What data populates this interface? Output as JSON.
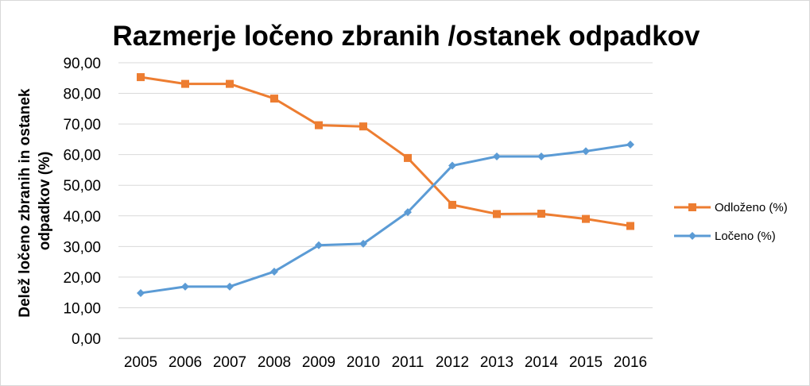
{
  "chart_data": {
    "type": "line",
    "title": "Razmerje ločeno zbranih /ostanek odpadkov",
    "xlabel": "",
    "ylabel_lines": [
      "Delež ločeno zbranih in ostanek",
      "odpadkov (%)"
    ],
    "categories": [
      "2005",
      "2006",
      "2007",
      "2008",
      "2009",
      "2010",
      "2011",
      "2012",
      "2013",
      "2014",
      "2015",
      "2016"
    ],
    "y_ticks": [
      "0,00",
      "10,00",
      "20,00",
      "30,00",
      "40,00",
      "50,00",
      "60,00",
      "70,00",
      "80,00",
      "90,00"
    ],
    "ylim": [
      0,
      90
    ],
    "grid": true,
    "legend_position": "right",
    "series": [
      {
        "name": "Odloženo  (%)",
        "color": "#ED7D31",
        "marker": "square",
        "values": [
          85.3,
          83.1,
          83.1,
          78.3,
          69.6,
          69.2,
          58.9,
          43.6,
          40.6,
          40.7,
          39.0,
          36.7
        ]
      },
      {
        "name": "Ločeno (%)",
        "color": "#5B9BD5",
        "marker": "diamond",
        "values": [
          14.8,
          16.9,
          16.9,
          21.8,
          30.4,
          30.9,
          41.2,
          56.4,
          59.4,
          59.4,
          61.1,
          63.3
        ]
      }
    ]
  }
}
